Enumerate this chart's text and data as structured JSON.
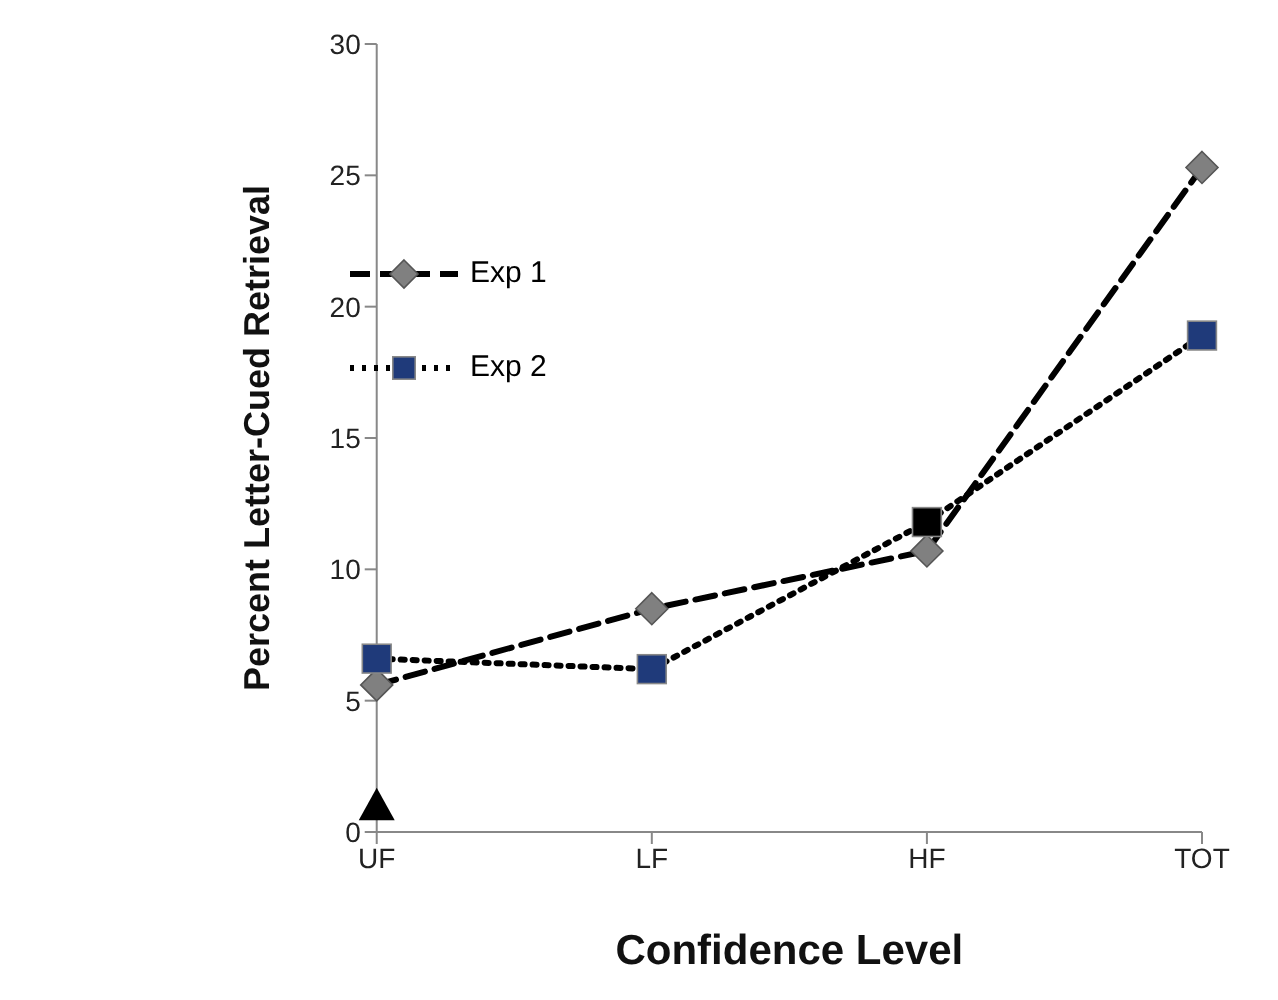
{
  "chart_data": {
    "type": "line",
    "xlabel": "Confidence Level",
    "ylabel": "Percent Letter-Cued Retrieval",
    "categories": [
      "UF",
      "LF",
      "HF",
      "TOT"
    ],
    "ylim": [
      0,
      30
    ],
    "yticks": [
      0,
      5,
      10,
      15,
      20,
      25,
      30
    ],
    "grid": false,
    "legend": "top left",
    "series": [
      {
        "name": "Exp 1",
        "color": "#808080",
        "values": [
          5.6,
          8.5,
          10.7,
          25.3
        ],
        "marker": "diamond",
        "line_style": "dashed"
      },
      {
        "name": "Exp 2",
        "color": "#1f3a7a",
        "colors": [
          "#1f3a7a",
          "#1f3a7a",
          "#000000",
          "#1f3a7a"
        ],
        "values": [
          6.6,
          6.2,
          11.8,
          18.9
        ],
        "marker": "square",
        "line_style": "dotted"
      },
      {
        "type": "scatter",
        "color": "#000000",
        "values": [
          1.0,
          null,
          null,
          null
        ],
        "marker": "triangle"
      }
    ]
  }
}
